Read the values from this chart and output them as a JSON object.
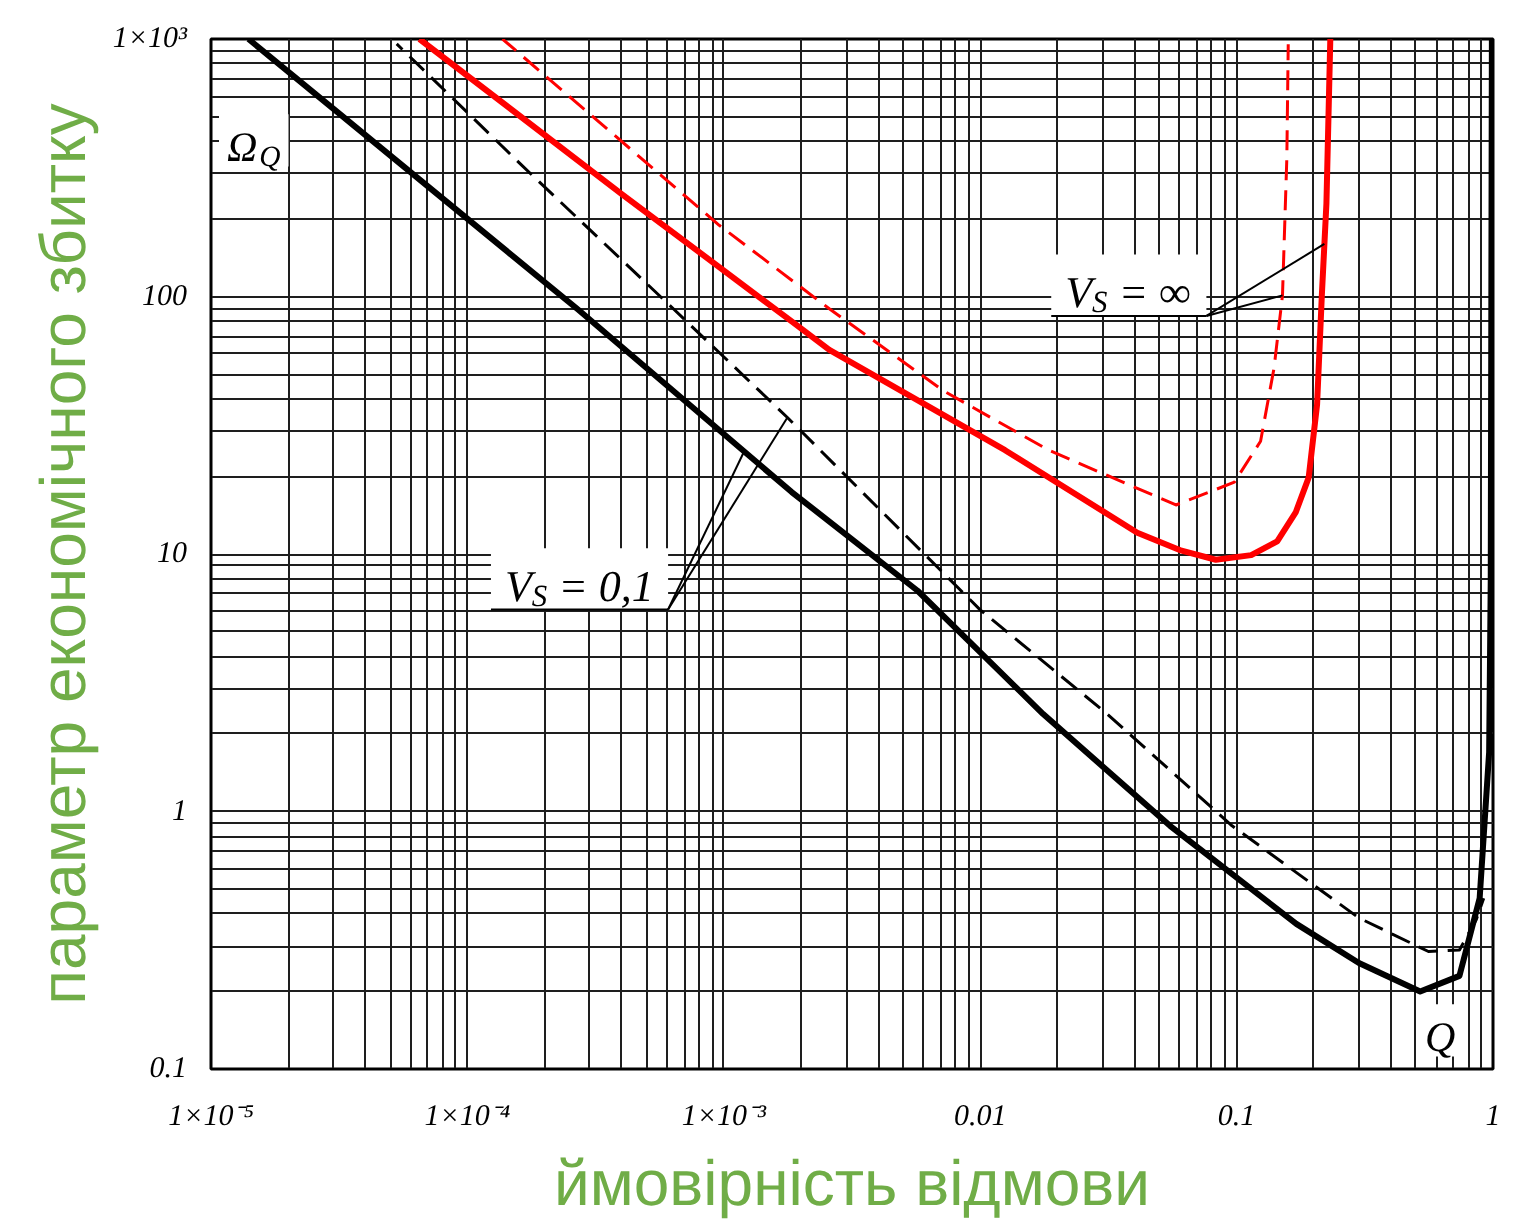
{
  "chart_data": {
    "type": "line",
    "xlabel": "ймовірність відмови",
    "ylabel": "параметр економічного збитку",
    "log": "xy",
    "xlim": [
      1e-05,
      1
    ],
    "ylim": [
      0.1,
      1000
    ],
    "xticks": [
      {
        "value": 1e-05,
        "label": "1×10⁻⁵"
      },
      {
        "value": 0.0001,
        "label": "1×10⁻⁴"
      },
      {
        "value": 0.001,
        "label": "1×10⁻³"
      },
      0.01,
      0.1,
      1
    ],
    "yticks": [
      0.1,
      1,
      10,
      100,
      {
        "value": 1000,
        "label": "1×10³"
      }
    ],
    "grid": true,
    "series": [
      {
        "color": "#000000",
        "line_style": "solid",
        "x": [
          1.4e-05,
          2.55e-05,
          6.15e-05,
          0.00027,
          0.00184,
          0.0057,
          0.0176,
          0.055,
          0.171,
          0.3,
          0.52,
          0.74,
          0.887,
          0.966,
          0.98,
          0.99
        ],
        "values": [
          1000,
          612,
          298,
          89,
          17.4,
          7.2,
          2.39,
          0.88,
          0.366,
          0.258,
          0.2,
          0.23,
          0.46,
          1.7,
          8,
          1000
        ]
      },
      {
        "color": "#000000",
        "line_style": "dashed",
        "x": [
          5.3e-05,
          0.000162,
          0.00064,
          0.00177,
          0.01,
          0.0313,
          0.096,
          0.3,
          0.56,
          0.74,
          0.86,
          0.92
        ],
        "values": [
          957,
          325,
          89,
          33.9,
          6.07,
          2.39,
          0.88,
          0.386,
          0.286,
          0.29,
          0.38,
          0.46
        ]
      },
      {
        "color": "#ff0000",
        "line_style": "solid",
        "x": [
          6.5e-05,
          0.0004,
          0.00184,
          0.00258,
          0.0125,
          0.041,
          0.061,
          0.083,
          0.114,
          0.144,
          0.17,
          0.191,
          0.206,
          0.215,
          0.224,
          0.232
        ],
        "values": [
          1000,
          250,
          80,
          62,
          25.3,
          12.1,
          10.3,
          9.5,
          9.9,
          11.2,
          14.5,
          19.8,
          38,
          101,
          229,
          1000
        ]
      },
      {
        "color": "#ff0000",
        "line_style": "dashed",
        "x": [
          0.000137,
          0.00096,
          0.00258,
          0.0072,
          0.0185,
          0.058,
          0.098,
          0.124,
          0.14,
          0.151,
          0.157,
          0.159
        ],
        "values": [
          1000,
          189,
          89.6,
          43,
          25.3,
          15.5,
          19,
          27.4,
          52.8,
          101,
          344,
          955
        ]
      }
    ],
    "annotations": [
      "Ω$_{Q}$",
      "Q",
      {
        "text": "V$_{S}$ = ∞",
        "x": 0.22,
        "y": 160
      },
      {
        "text": "V$_{S}$ = 0,1",
        "x": 0.0012,
        "y": 25
      }
    ]
  }
}
